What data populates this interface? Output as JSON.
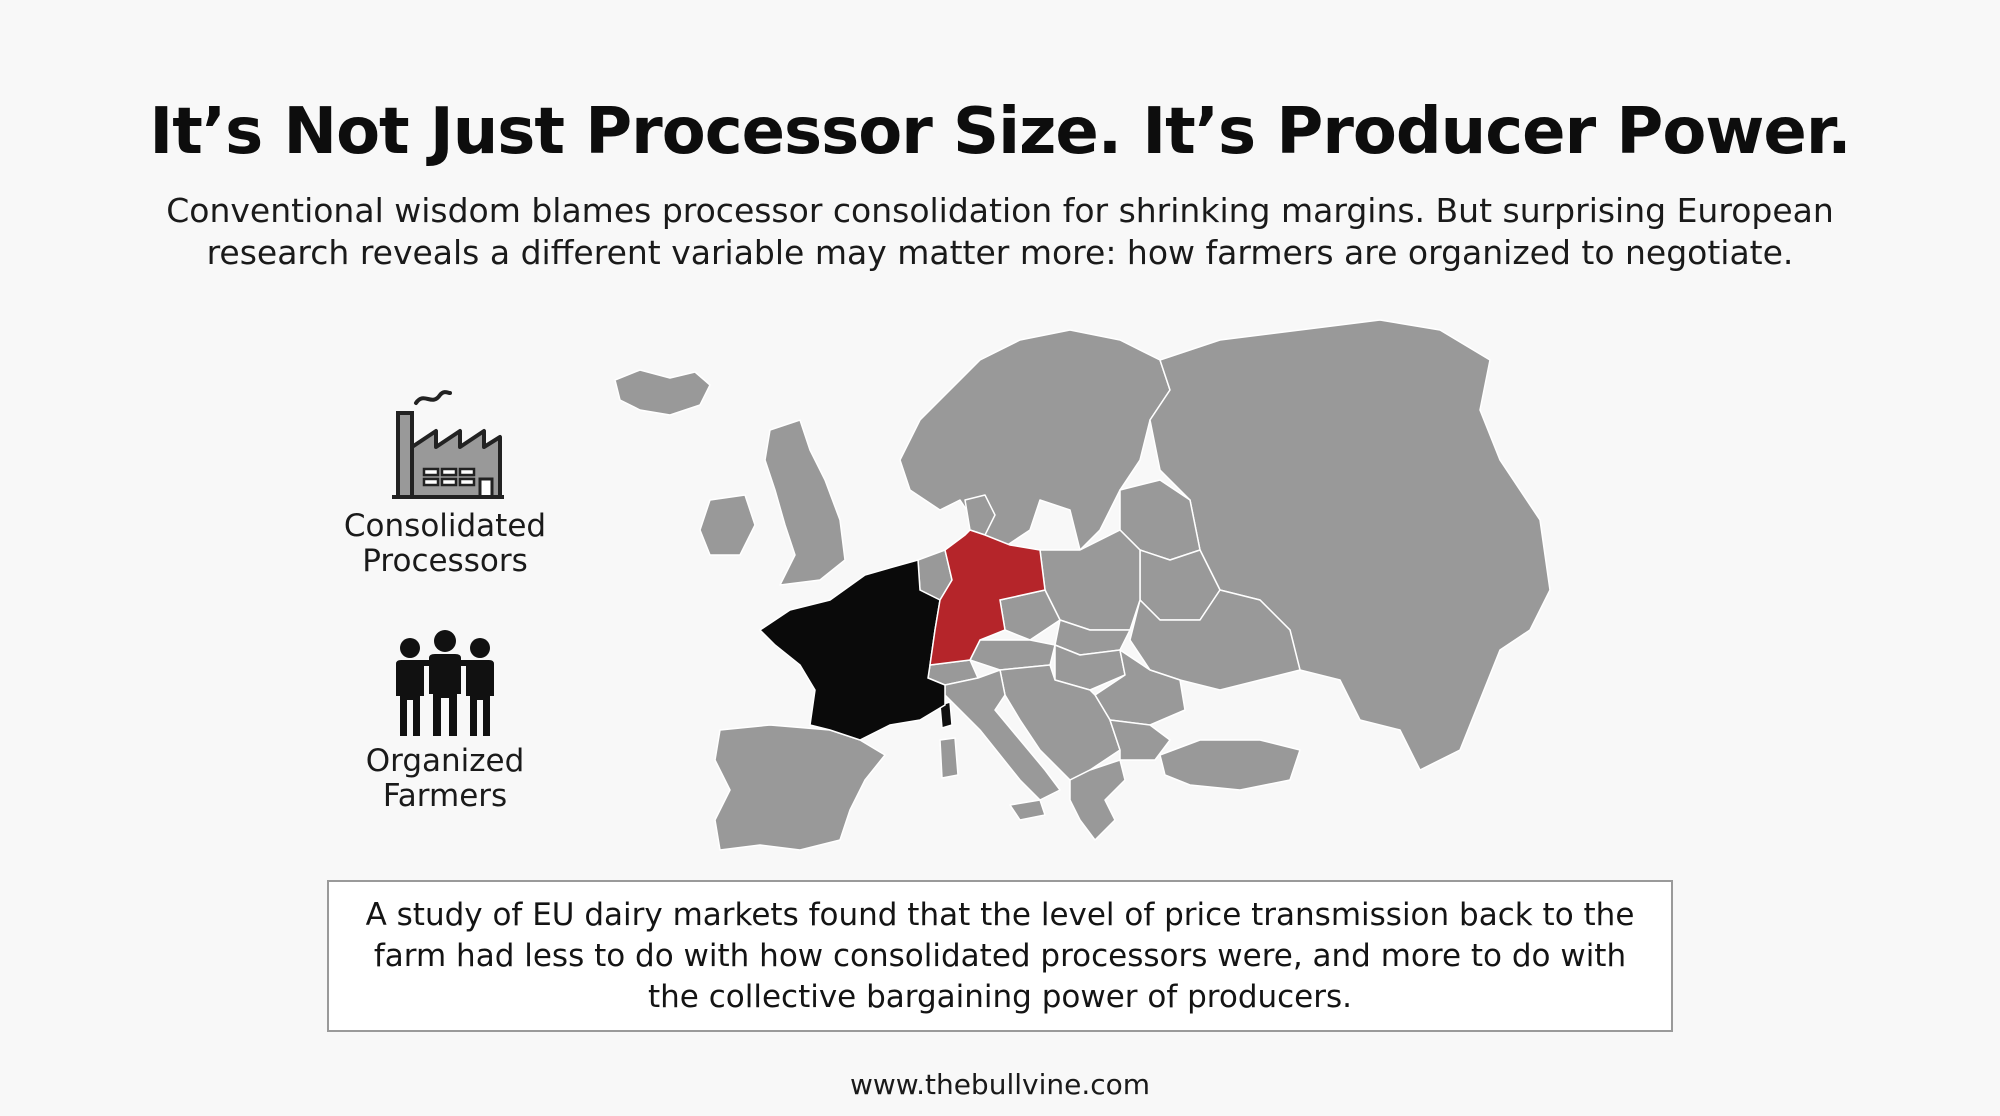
{
  "header": {
    "title": "It’s Not Just Processor Size. It’s Producer Power.",
    "subtitle": "Conventional wisdom blames processor consolidation for shrinking margins. But surprising European research reveals a different variable may matter more: how farmers are organized to negotiate."
  },
  "legend": {
    "processors": {
      "label": "Consolidated\nProcessors",
      "icon": "factory-icon"
    },
    "farmers": {
      "label": "Organized\nFarmers",
      "icon": "people-group-icon"
    }
  },
  "map": {
    "base_color": "#999999",
    "border_color": "#ffffff",
    "highlights": [
      {
        "country": "Germany",
        "color": "#b5252a"
      },
      {
        "country": "France",
        "color": "#0a0a0a"
      }
    ]
  },
  "finding": {
    "text": "A study of EU dairy markets found that the level of price transmission back to the farm had less to do with how consolidated processors were, and more to do with the collective bargaining power of producers."
  },
  "footer": {
    "url": "www.thebullvine.com"
  }
}
